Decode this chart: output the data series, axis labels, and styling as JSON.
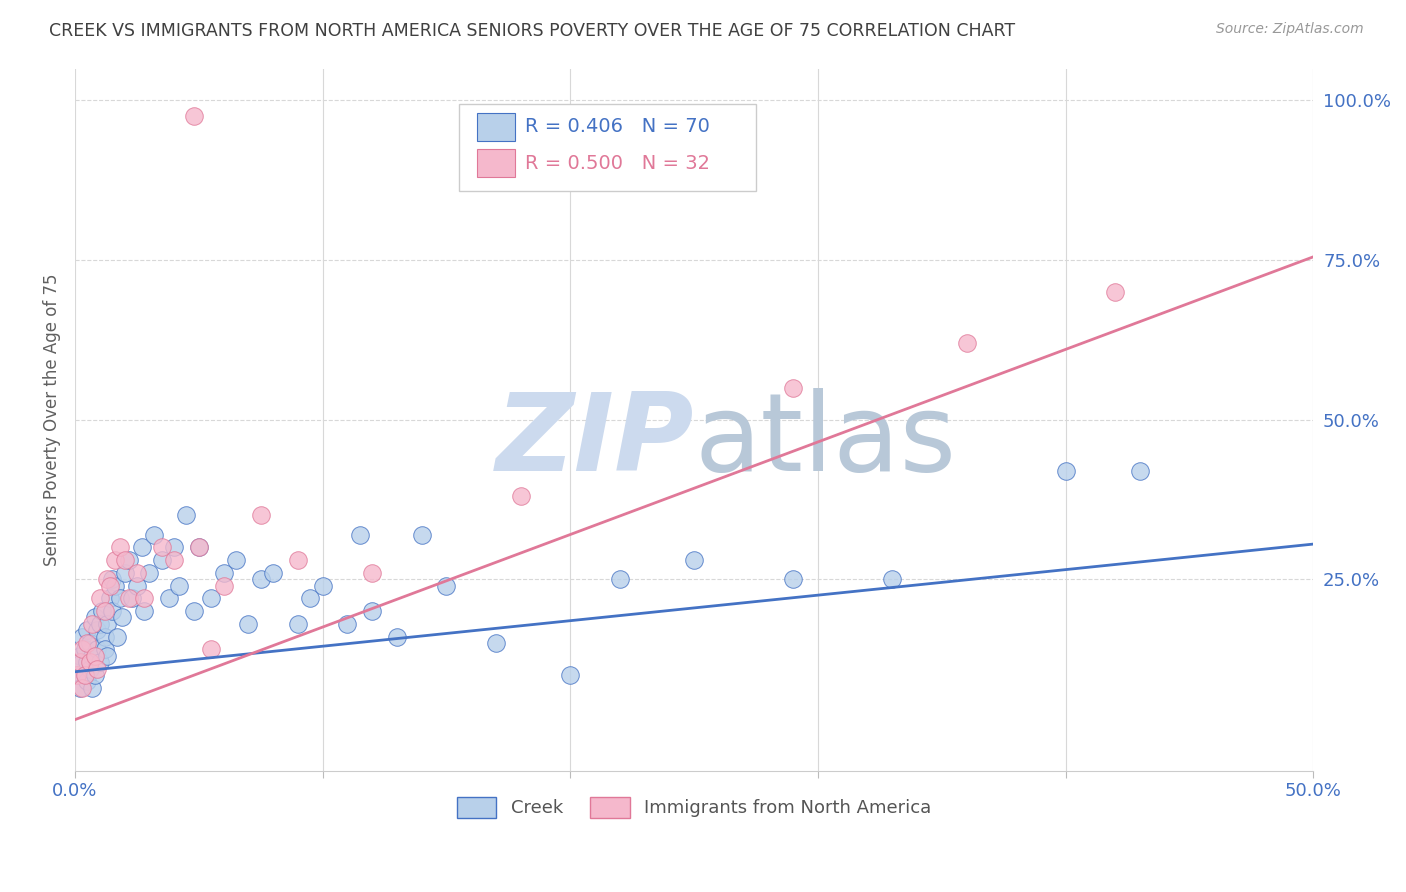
{
  "title": "CREEK VS IMMIGRANTS FROM NORTH AMERICA SENIORS POVERTY OVER THE AGE OF 75 CORRELATION CHART",
  "source": "Source: ZipAtlas.com",
  "ylabel": "Seniors Poverty Over the Age of 75",
  "creek_R": 0.406,
  "creek_N": 70,
  "immig_R": 0.5,
  "immig_N": 32,
  "creek_color": "#b8d0ea",
  "immig_color": "#f5b8cc",
  "creek_line_color": "#4472c4",
  "immig_line_color": "#e07898",
  "background_color": "#ffffff",
  "grid_color": "#d8d8d8",
  "title_color": "#404040",
  "axis_label_color": "#4472c4",
  "watermark_color": "#ccdaee",
  "xlim": [
    0.0,
    0.5
  ],
  "ylim": [
    -0.05,
    1.05
  ],
  "ytick_vals_right": [
    1.0,
    0.75,
    0.5,
    0.25
  ],
  "ytick_labels_right": [
    "100.0%",
    "75.0%",
    "50.0%",
    "25.0%"
  ],
  "xtick_vals": [
    0.0,
    0.1,
    0.2,
    0.3,
    0.4,
    0.5
  ],
  "legend_label1": "Creek",
  "legend_label2": "Immigrants from North America",
  "creek_x": [
    0.001,
    0.002,
    0.002,
    0.003,
    0.003,
    0.004,
    0.004,
    0.005,
    0.005,
    0.005,
    0.006,
    0.006,
    0.007,
    0.007,
    0.008,
    0.008,
    0.009,
    0.009,
    0.01,
    0.01,
    0.011,
    0.012,
    0.012,
    0.013,
    0.013,
    0.014,
    0.015,
    0.015,
    0.016,
    0.017,
    0.018,
    0.019,
    0.02,
    0.022,
    0.023,
    0.025,
    0.027,
    0.028,
    0.03,
    0.032,
    0.035,
    0.038,
    0.04,
    0.042,
    0.045,
    0.048,
    0.05,
    0.055,
    0.06,
    0.065,
    0.07,
    0.075,
    0.08,
    0.09,
    0.095,
    0.1,
    0.11,
    0.115,
    0.12,
    0.13,
    0.14,
    0.15,
    0.17,
    0.2,
    0.22,
    0.25,
    0.29,
    0.33,
    0.4,
    0.43
  ],
  "creek_y": [
    0.1,
    0.13,
    0.08,
    0.12,
    0.16,
    0.1,
    0.14,
    0.09,
    0.12,
    0.17,
    0.11,
    0.15,
    0.08,
    0.13,
    0.1,
    0.19,
    0.14,
    0.17,
    0.18,
    0.12,
    0.2,
    0.16,
    0.14,
    0.18,
    0.13,
    0.22,
    0.2,
    0.25,
    0.24,
    0.16,
    0.22,
    0.19,
    0.26,
    0.28,
    0.22,
    0.24,
    0.3,
    0.2,
    0.26,
    0.32,
    0.28,
    0.22,
    0.3,
    0.24,
    0.35,
    0.2,
    0.3,
    0.22,
    0.26,
    0.28,
    0.18,
    0.25,
    0.26,
    0.18,
    0.22,
    0.24,
    0.18,
    0.32,
    0.2,
    0.16,
    0.32,
    0.24,
    0.15,
    0.1,
    0.25,
    0.28,
    0.25,
    0.25,
    0.42,
    0.42
  ],
  "immig_x": [
    0.001,
    0.002,
    0.003,
    0.003,
    0.004,
    0.005,
    0.006,
    0.007,
    0.008,
    0.009,
    0.01,
    0.012,
    0.013,
    0.014,
    0.016,
    0.018,
    0.02,
    0.022,
    0.025,
    0.028,
    0.035,
    0.04,
    0.05,
    0.055,
    0.06,
    0.075,
    0.09,
    0.12,
    0.18,
    0.29,
    0.36,
    0.42
  ],
  "immig_y": [
    0.1,
    0.12,
    0.08,
    0.14,
    0.1,
    0.15,
    0.12,
    0.18,
    0.13,
    0.11,
    0.22,
    0.2,
    0.25,
    0.24,
    0.28,
    0.3,
    0.28,
    0.22,
    0.26,
    0.22,
    0.3,
    0.28,
    0.3,
    0.14,
    0.24,
    0.35,
    0.28,
    0.26,
    0.38,
    0.55,
    0.62,
    0.7
  ],
  "immig_outlier_x": [
    0.048
  ],
  "immig_outlier_y": [
    0.975
  ],
  "creek_regression_x0": 0.0,
  "creek_regression_y0": 0.105,
  "creek_regression_x1": 0.5,
  "creek_regression_y1": 0.305,
  "immig_regression_x0": 0.0,
  "immig_regression_y0": 0.03,
  "immig_regression_x1": 0.5,
  "immig_regression_y1": 0.755
}
